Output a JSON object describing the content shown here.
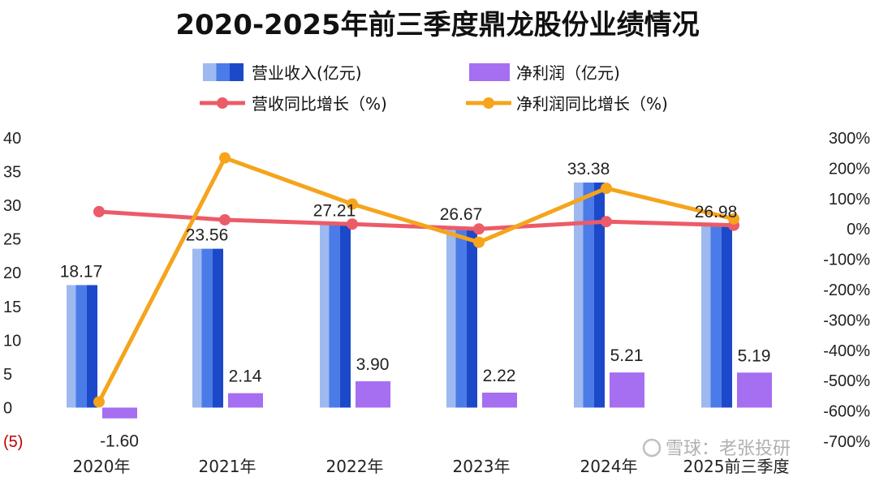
{
  "chart_data": {
    "type": "bar",
    "title": "2020-2025年前三季度鼎龙股份业绩情况",
    "categories": [
      "2020年",
      "2021年",
      "2022年",
      "2023年",
      "2024年",
      "2025前三季度"
    ],
    "series": [
      {
        "name": "营业收入(亿元)",
        "kind": "bar",
        "axis": "left",
        "values": [
          18.17,
          23.56,
          27.21,
          26.67,
          33.38,
          26.98
        ],
        "labels": [
          "18.17",
          "23.56",
          "27.21",
          "26.67",
          "33.38",
          "26.98"
        ]
      },
      {
        "name": "净利润（亿元)",
        "kind": "bar",
        "axis": "left",
        "values": [
          -1.6,
          2.14,
          3.9,
          2.22,
          5.21,
          5.19
        ],
        "labels": [
          "-1.60",
          "2.14",
          "3.90",
          "2.22",
          "5.21",
          "5.19"
        ]
      },
      {
        "name": "营收同比增长（%)",
        "kind": "line",
        "axis": "right",
        "values": [
          57,
          30,
          16,
          0,
          24,
          12
        ]
      },
      {
        "name": "净利润同比增长（%)",
        "kind": "line",
        "axis": "right",
        "values": [
          -570,
          234,
          82,
          -44,
          134,
          33
        ]
      }
    ],
    "y_left": {
      "range": [
        -5,
        40
      ],
      "ticks": [
        "(5)",
        "0",
        "5",
        "10",
        "15",
        "20",
        "25",
        "30",
        "35",
        "40"
      ],
      "tick_values": [
        -5,
        0,
        5,
        10,
        15,
        20,
        25,
        30,
        35,
        40
      ]
    },
    "y_right": {
      "range": [
        -700,
        300
      ],
      "ticks": [
        "-700%",
        "-600%",
        "-500%",
        "-400%",
        "-300%",
        "-200%",
        "-100%",
        "0%",
        "100%",
        "200%",
        "300%"
      ],
      "tick_values": [
        -700,
        -600,
        -500,
        -400,
        -300,
        -200,
        -100,
        0,
        100,
        200,
        300
      ]
    },
    "grid": false,
    "legend_position": "top",
    "colors": {
      "revenue_light": "#9db9ef",
      "revenue_mid": "#4a7be8",
      "revenue_dark": "#1c49c9",
      "profit": "#a66ef0",
      "revenue_growth": "#ec5b68",
      "profit_growth": "#f5a41c"
    }
  },
  "watermark": "雪球：老张投研"
}
